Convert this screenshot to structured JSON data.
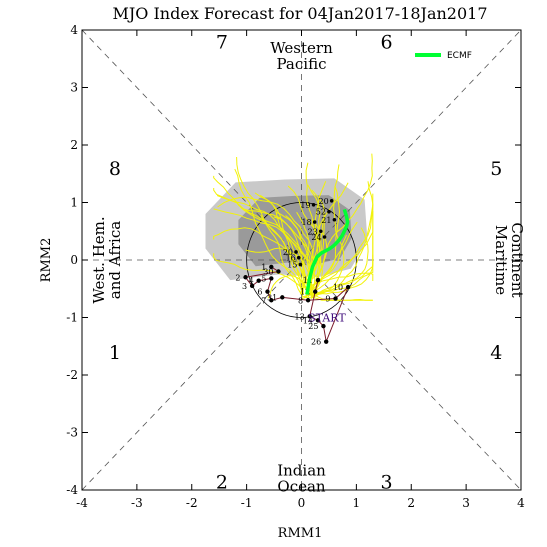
{
  "chart_data": {
    "type": "line",
    "title": "MJO Index Forecast for 04Jan2017-18Jan2017",
    "xlabel": "RMM1",
    "ylabel": "RMM2",
    "xlim": [
      -4,
      4
    ],
    "ylim": [
      -4,
      4
    ],
    "xticks": [
      "-4",
      "-3",
      "-2",
      "-1",
      "0",
      "1",
      "2",
      "3",
      "4"
    ],
    "yticks": [
      "-4",
      "-3",
      "-2",
      "-1",
      "0",
      "1",
      "2",
      "3",
      "4"
    ],
    "grid": false,
    "legend": {
      "position": "top-right",
      "label": "ECMF",
      "color": "#00ff33"
    },
    "phases": [
      {
        "label": "1",
        "x": -3.4,
        "y": -1.6
      },
      {
        "label": "2",
        "x": -1.45,
        "y": -3.85
      },
      {
        "label": "3",
        "x": 1.55,
        "y": -3.85
      },
      {
        "label": "4",
        "x": 3.55,
        "y": -1.6
      },
      {
        "label": "5",
        "x": 3.55,
        "y": 1.6
      },
      {
        "label": "6",
        "x": 1.55,
        "y": 3.8
      },
      {
        "label": "7",
        "x": -1.45,
        "y": 3.8
      },
      {
        "label": "8",
        "x": -3.4,
        "y": 1.6
      }
    ],
    "regions": {
      "top": [
        "Western",
        "Pacific"
      ],
      "bottom": [
        "Indian",
        "Ocean"
      ],
      "left": [
        "West. Hem.",
        "and Africa"
      ],
      "right": [
        "Maritime",
        "Continent"
      ]
    },
    "observed": {
      "color": "#7a1a2a",
      "start_label": "START",
      "points": [
        {
          "label": "11",
          "x": 0.3,
          "y": -0.35
        },
        {
          "label": "12",
          "x": 0.25,
          "y": -0.55
        },
        {
          "label": "13",
          "x": 0.15,
          "y": -0.98
        },
        {
          "label": "14",
          "x": 0.3,
          "y": -1.05
        },
        {
          "label": "25",
          "x": 0.4,
          "y": -1.15
        },
        {
          "label": "26",
          "x": 0.45,
          "y": -1.42
        },
        {
          "label": "10",
          "x": 0.85,
          "y": -0.47
        },
        {
          "label": "9",
          "x": 0.62,
          "y": -0.67
        },
        {
          "label": "8",
          "x": 0.12,
          "y": -0.7
        },
        {
          "label": "31",
          "x": -0.35,
          "y": -0.65
        },
        {
          "label": "7",
          "x": -0.55,
          "y": -0.7
        },
        {
          "label": "6",
          "x": -0.62,
          "y": -0.55
        },
        {
          "label": "5",
          "x": -0.55,
          "y": -0.32
        },
        {
          "label": "4",
          "x": -0.78,
          "y": -0.36
        },
        {
          "label": "3",
          "x": -0.9,
          "y": -0.45
        },
        {
          "label": "2",
          "x": -1.02,
          "y": -0.3
        },
        {
          "label": "30",
          "x": -0.42,
          "y": -0.2
        },
        {
          "label": "1",
          "x": -0.55,
          "y": -0.12
        }
      ]
    },
    "ensemble_mean": {
      "name": "ECMF",
      "color": "#00ff33",
      "x": [
        0.1,
        0.14,
        0.2,
        0.28,
        0.36,
        0.44,
        0.52,
        0.6,
        0.68,
        0.74,
        0.78,
        0.82,
        0.84,
        0.82,
        0.78
      ],
      "y": [
        -0.6,
        -0.35,
        -0.12,
        0.05,
        0.12,
        0.16,
        0.2,
        0.26,
        0.34,
        0.42,
        0.5,
        0.58,
        0.66,
        0.76,
        0.88
      ]
    },
    "forecast_day_labels": [
      {
        "label": "20",
        "x": 0.55,
        "y": 1.03
      },
      {
        "label": "19",
        "x": 0.22,
        "y": 0.96
      },
      {
        "label": "52",
        "x": 0.5,
        "y": 0.84
      },
      {
        "label": "21",
        "x": 0.6,
        "y": 0.7
      },
      {
        "label": "18",
        "x": 0.24,
        "y": 0.66
      },
      {
        "label": "23",
        "x": 0.35,
        "y": 0.5
      },
      {
        "label": "24",
        "x": 0.42,
        "y": 0.4
      },
      {
        "label": "20",
        "x": -0.1,
        "y": 0.14
      },
      {
        "label": "16",
        "x": -0.05,
        "y": 0.04
      },
      {
        "label": "15",
        "x": -0.02,
        "y": -0.08
      }
    ]
  }
}
